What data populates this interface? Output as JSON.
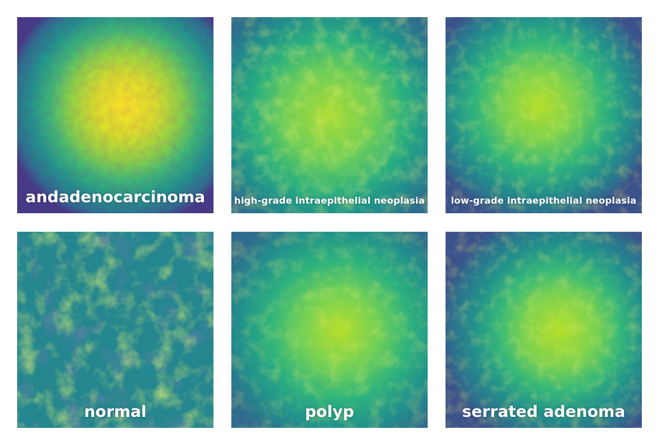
{
  "panels": [
    {
      "label": "andadenocarcinoma",
      "size": "big",
      "palette": [
        "#fde725",
        "#b5de2b",
        "#6ece58",
        "#35b779",
        "#1f9e89",
        "#26828e",
        "#31688e",
        "#3e4989",
        "#482878",
        "#440154"
      ]
    },
    {
      "label": "high-grade intraepithelial neoplasia",
      "size": "small"
    },
    {
      "label": "low-grade intraepithelial neoplasia",
      "size": "small"
    },
    {
      "label": "normal",
      "size": "big"
    },
    {
      "label": "polyp",
      "size": "big"
    },
    {
      "label": "serrated adenoma",
      "size": "big"
    }
  ]
}
